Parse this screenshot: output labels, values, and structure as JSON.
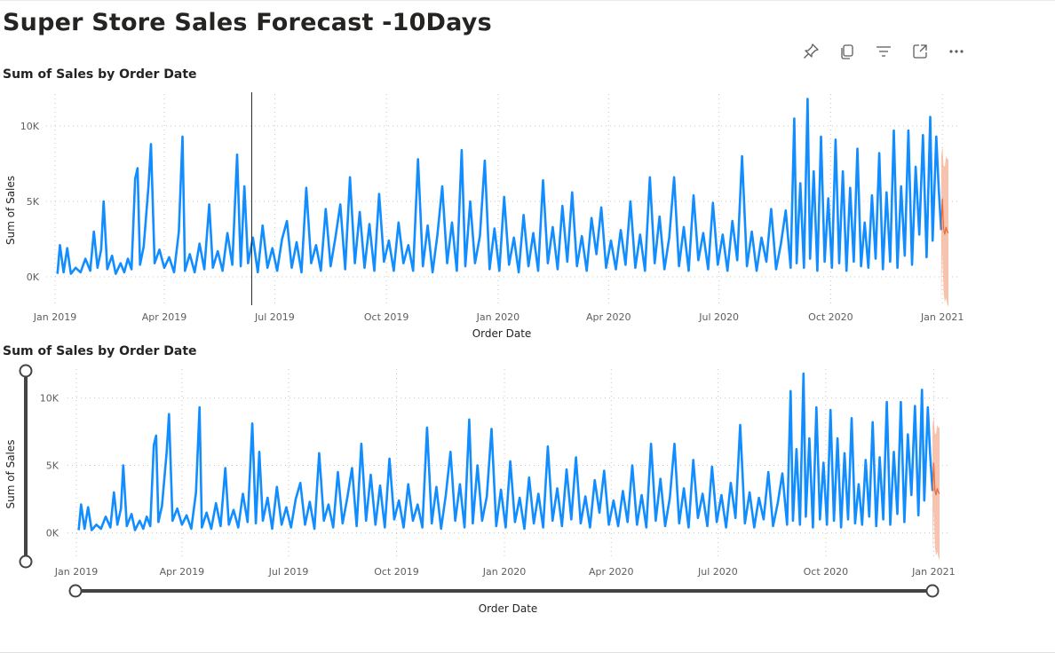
{
  "page": {
    "title": "Super Store Sales Forecast -10Days"
  },
  "header_icons": [
    "pin-icon",
    "copy-icon",
    "filter-icon",
    "focus-mode-icon",
    "more-options-icon"
  ],
  "colors": {
    "actual": "#118DFF",
    "forecast": "#E66C37",
    "band": "#F4B9A0",
    "grid": "#C8C6C4",
    "text": "#605E5C",
    "slider": "#444444"
  },
  "chart_data": [
    {
      "type": "line",
      "title": "Sum of Sales by Order Date",
      "xlabel": "Order Date",
      "ylabel": "Sum of Sales",
      "x_ticks": [
        "Jan 2019",
        "Apr 2019",
        "Jul 2019",
        "Oct 2019",
        "Jan 2020",
        "Apr 2020",
        "Jul 2020",
        "Oct 2020",
        "Jan 2021"
      ],
      "y_ticks": [
        "0K",
        "5K",
        "10K"
      ],
      "ylim": [
        -2000,
        12000
      ],
      "xlim": [
        "2019-01-01",
        "2021-01-06"
      ],
      "grid": true,
      "hover_line_date": "2019-06-12",
      "series": [
        {
          "kind": "actual",
          "values": [
            [
              "2019-01-03",
              200
            ],
            [
              "2019-01-05",
              2100
            ],
            [
              "2019-01-08",
              300
            ],
            [
              "2019-01-11",
              1900
            ],
            [
              "2019-01-14",
              200
            ],
            [
              "2019-01-18",
              600
            ],
            [
              "2019-01-22",
              300
            ],
            [
              "2019-01-26",
              1200
            ],
            [
              "2019-01-30",
              400
            ],
            [
              "2019-02-02",
              3000
            ],
            [
              "2019-02-05",
              600
            ],
            [
              "2019-02-08",
              1800
            ],
            [
              "2019-02-10",
              5000
            ],
            [
              "2019-02-13",
              500
            ],
            [
              "2019-02-17",
              1400
            ],
            [
              "2019-02-20",
              200
            ],
            [
              "2019-02-24",
              900
            ],
            [
              "2019-02-27",
              300
            ],
            [
              "2019-03-02",
              1200
            ],
            [
              "2019-03-05",
              500
            ],
            [
              "2019-03-08",
              6500
            ],
            [
              "2019-03-10",
              7200
            ],
            [
              "2019-03-12",
              800
            ],
            [
              "2019-03-15",
              2000
            ],
            [
              "2019-03-19",
              6000
            ],
            [
              "2019-03-21",
              8800
            ],
            [
              "2019-03-24",
              900
            ],
            [
              "2019-03-28",
              1800
            ],
            [
              "2019-04-01",
              600
            ],
            [
              "2019-04-05",
              1300
            ],
            [
              "2019-04-09",
              300
            ],
            [
              "2019-04-13",
              3000
            ],
            [
              "2019-04-16",
              9300
            ],
            [
              "2019-04-18",
              400
            ],
            [
              "2019-04-22",
              1500
            ],
            [
              "2019-04-26",
              300
            ],
            [
              "2019-04-30",
              2200
            ],
            [
              "2019-05-04",
              500
            ],
            [
              "2019-05-08",
              4800
            ],
            [
              "2019-05-11",
              600
            ],
            [
              "2019-05-15",
              1700
            ],
            [
              "2019-05-19",
              400
            ],
            [
              "2019-05-23",
              2900
            ],
            [
              "2019-05-27",
              800
            ],
            [
              "2019-05-31",
              8100
            ],
            [
              "2019-06-03",
              700
            ],
            [
              "2019-06-06",
              6000
            ],
            [
              "2019-06-09",
              900
            ],
            [
              "2019-06-13",
              2600
            ],
            [
              "2019-06-17",
              300
            ],
            [
              "2019-06-21",
              3400
            ],
            [
              "2019-06-25",
              600
            ],
            [
              "2019-06-29",
              1900
            ],
            [
              "2019-07-03",
              400
            ],
            [
              "2019-07-07",
              2500
            ],
            [
              "2019-07-11",
              3700
            ],
            [
              "2019-07-15",
              600
            ],
            [
              "2019-07-19",
              2300
            ],
            [
              "2019-07-23",
              300
            ],
            [
              "2019-07-27",
              5900
            ],
            [
              "2019-07-31",
              900
            ],
            [
              "2019-08-04",
              2100
            ],
            [
              "2019-08-08",
              400
            ],
            [
              "2019-08-12",
              4500
            ],
            [
              "2019-08-16",
              700
            ],
            [
              "2019-08-20",
              2600
            ],
            [
              "2019-08-24",
              4800
            ],
            [
              "2019-08-28",
              500
            ],
            [
              "2019-09-01",
              6600
            ],
            [
              "2019-09-05",
              900
            ],
            [
              "2019-09-09",
              4300
            ],
            [
              "2019-09-13",
              600
            ],
            [
              "2019-09-17",
              3500
            ],
            [
              "2019-09-21",
              400
            ],
            [
              "2019-09-25",
              5500
            ],
            [
              "2019-09-29",
              1000
            ],
            [
              "2019-10-03",
              2400
            ],
            [
              "2019-10-07",
              400
            ],
            [
              "2019-10-11",
              3600
            ],
            [
              "2019-10-15",
              900
            ],
            [
              "2019-10-19",
              2100
            ],
            [
              "2019-10-23",
              400
            ],
            [
              "2019-10-27",
              7800
            ],
            [
              "2019-10-31",
              700
            ],
            [
              "2019-11-04",
              3400
            ],
            [
              "2019-11-08",
              300
            ],
            [
              "2019-11-12",
              2800
            ],
            [
              "2019-11-16",
              6000
            ],
            [
              "2019-11-20",
              900
            ],
            [
              "2019-11-24",
              3600
            ],
            [
              "2019-11-28",
              400
            ],
            [
              "2019-12-02",
              8400
            ],
            [
              "2019-12-05",
              700
            ],
            [
              "2019-12-09",
              5000
            ],
            [
              "2019-12-13",
              900
            ],
            [
              "2019-12-17",
              2700
            ],
            [
              "2019-12-21",
              7700
            ],
            [
              "2019-12-25",
              500
            ],
            [
              "2019-12-29",
              3200
            ],
            [
              "2020-01-02",
              400
            ],
            [
              "2020-01-06",
              5300
            ],
            [
              "2020-01-10",
              800
            ],
            [
              "2020-01-14",
              2600
            ],
            [
              "2020-01-18",
              300
            ],
            [
              "2020-01-22",
              4100
            ],
            [
              "2020-01-26",
              700
            ],
            [
              "2020-01-30",
              2900
            ],
            [
              "2020-02-03",
              400
            ],
            [
              "2020-02-07",
              6400
            ],
            [
              "2020-02-11",
              900
            ],
            [
              "2020-02-15",
              3300
            ],
            [
              "2020-02-19",
              500
            ],
            [
              "2020-02-23",
              4700
            ],
            [
              "2020-02-27",
              1000
            ],
            [
              "2020-03-02",
              5600
            ],
            [
              "2020-03-06",
              700
            ],
            [
              "2020-03-10",
              2700
            ],
            [
              "2020-03-14",
              400
            ],
            [
              "2020-03-18",
              3900
            ],
            [
              "2020-03-22",
              1500
            ],
            [
              "2020-03-26",
              4600
            ],
            [
              "2020-03-30",
              600
            ],
            [
              "2020-04-03",
              2400
            ],
            [
              "2020-04-07",
              500
            ],
            [
              "2020-04-11",
              3100
            ],
            [
              "2020-04-15",
              800
            ],
            [
              "2020-04-19",
              5000
            ],
            [
              "2020-04-23",
              600
            ],
            [
              "2020-04-27",
              2800
            ],
            [
              "2020-05-01",
              400
            ],
            [
              "2020-05-05",
              6600
            ],
            [
              "2020-05-09",
              900
            ],
            [
              "2020-05-13",
              4000
            ],
            [
              "2020-05-17",
              500
            ],
            [
              "2020-05-21",
              2600
            ],
            [
              "2020-05-25",
              6600
            ],
            [
              "2020-05-29",
              700
            ],
            [
              "2020-06-02",
              3300
            ],
            [
              "2020-06-06",
              400
            ],
            [
              "2020-06-10",
              5400
            ],
            [
              "2020-06-14",
              1100
            ],
            [
              "2020-06-18",
              2900
            ],
            [
              "2020-06-22",
              500
            ],
            [
              "2020-06-26",
              4900
            ],
            [
              "2020-06-30",
              800
            ],
            [
              "2020-07-04",
              2800
            ],
            [
              "2020-07-08",
              400
            ],
            [
              "2020-07-12",
              3700
            ],
            [
              "2020-07-16",
              1100
            ],
            [
              "2020-07-20",
              8000
            ],
            [
              "2020-07-24",
              700
            ],
            [
              "2020-07-28",
              3000
            ],
            [
              "2020-08-01",
              400
            ],
            [
              "2020-08-05",
              2600
            ],
            [
              "2020-08-09",
              1000
            ],
            [
              "2020-08-13",
              4500
            ],
            [
              "2020-08-17",
              500
            ],
            [
              "2020-08-21",
              2200
            ],
            [
              "2020-08-25",
              4400
            ],
            [
              "2020-08-29",
              600
            ],
            [
              "2020-09-01",
              10500
            ],
            [
              "2020-09-03",
              900
            ],
            [
              "2020-09-06",
              6200
            ],
            [
              "2020-09-09",
              600
            ],
            [
              "2020-09-12",
              11800
            ],
            [
              "2020-09-14",
              1200
            ],
            [
              "2020-09-17",
              7000
            ],
            [
              "2020-09-20",
              400
            ],
            [
              "2020-09-23",
              9300
            ],
            [
              "2020-09-26",
              1000
            ],
            [
              "2020-09-29",
              5200
            ],
            [
              "2020-10-02",
              600
            ],
            [
              "2020-10-05",
              9100
            ],
            [
              "2020-10-08",
              900
            ],
            [
              "2020-10-11",
              7000
            ],
            [
              "2020-10-14",
              400
            ],
            [
              "2020-10-17",
              5900
            ],
            [
              "2020-10-20",
              1000
            ],
            [
              "2020-10-23",
              8500
            ],
            [
              "2020-10-26",
              700
            ],
            [
              "2020-10-29",
              3600
            ],
            [
              "2020-11-01",
              600
            ],
            [
              "2020-11-04",
              5400
            ],
            [
              "2020-11-07",
              1200
            ],
            [
              "2020-11-10",
              8200
            ],
            [
              "2020-11-13",
              500
            ],
            [
              "2020-11-16",
              5600
            ],
            [
              "2020-11-19",
              1000
            ],
            [
              "2020-11-22",
              9700
            ],
            [
              "2020-11-25",
              600
            ],
            [
              "2020-11-28",
              6000
            ],
            [
              "2020-12-01",
              1400
            ],
            [
              "2020-12-04",
              9700
            ],
            [
              "2020-12-07",
              800
            ],
            [
              "2020-12-10",
              7300
            ],
            [
              "2020-12-13",
              2800
            ],
            [
              "2020-12-16",
              9400
            ],
            [
              "2020-12-19",
              1300
            ],
            [
              "2020-12-22",
              10600
            ],
            [
              "2020-12-24",
              2400
            ],
            [
              "2020-12-27",
              9300
            ],
            [
              "2020-12-29",
              5800
            ],
            [
              "2020-12-31",
              3100
            ]
          ]
        },
        {
          "kind": "forecast",
          "values": [
            [
              "2020-12-31",
              3100
            ],
            [
              "2021-01-01",
              5200
            ],
            [
              "2021-01-02",
              3200
            ],
            [
              "2021-01-03",
              2800
            ],
            [
              "2021-01-04",
              3300
            ],
            [
              "2021-01-05",
              3000
            ],
            [
              "2021-01-06",
              2900
            ]
          ]
        }
      ]
    },
    {
      "type": "line",
      "title": "Sum of Sales by Order Date",
      "xlabel": "Order Date",
      "ylabel": "Sum of Sales",
      "x_ticks": [
        "Jan 2019",
        "Apr 2019",
        "Jul 2019",
        "Oct 2019",
        "Jan 2020",
        "Apr 2020",
        "Jul 2020",
        "Oct 2020",
        "Jan 2021"
      ],
      "y_ticks": [
        "0K",
        "5K",
        "10K"
      ],
      "ylim": [
        -2000,
        12000
      ],
      "xlim": [
        "2019-01-01",
        "2021-01-06"
      ],
      "grid": true,
      "zoom_sliders": {
        "x": true,
        "y": true
      },
      "series": "same as chart 1"
    }
  ]
}
